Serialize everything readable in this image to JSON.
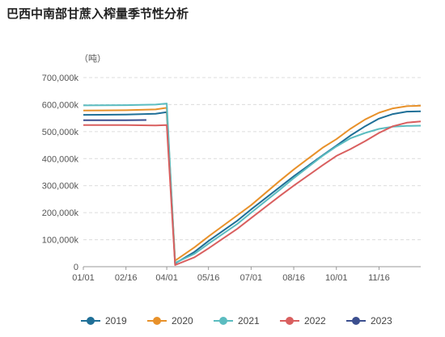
{
  "chart_data": {
    "type": "line",
    "title": "巴西中南部甘蔗入榨量季节性分析",
    "ylabel": "（吨）",
    "xlabel": "",
    "ylim": [
      0,
      700000
    ],
    "y_ticks": [
      "0",
      "100,000k",
      "200,000k",
      "300,000k",
      "400,000k",
      "500,000k",
      "600,000k",
      "700,000k"
    ],
    "x_ticks": [
      "01/01",
      "02/16",
      "04/01",
      "05/16",
      "07/01",
      "08/16",
      "10/01",
      "11/16"
    ],
    "grid": true,
    "legend_position": "bottom",
    "series": [
      {
        "name": "2019",
        "color": "#1f6f97",
        "points": [
          [
            "01/01",
            562000
          ],
          [
            "02/16",
            563000
          ],
          [
            "03/20",
            566000
          ],
          [
            "04/01",
            572000
          ],
          [
            "04/10",
            12000
          ],
          [
            "05/01",
            55000
          ],
          [
            "05/16",
            95000
          ],
          [
            "06/16",
            170000
          ],
          [
            "07/01",
            212000
          ],
          [
            "08/01",
            295000
          ],
          [
            "08/16",
            335000
          ],
          [
            "09/16",
            412000
          ],
          [
            "10/01",
            448000
          ],
          [
            "10/16",
            485000
          ],
          [
            "11/01",
            520000
          ],
          [
            "11/16",
            548000
          ],
          [
            "12/01",
            565000
          ],
          [
            "12/16",
            574000
          ],
          [
            "12/31",
            575000
          ]
        ]
      },
      {
        "name": "2020",
        "color": "#e8912a",
        "points": [
          [
            "01/01",
            578000
          ],
          [
            "02/16",
            579000
          ],
          [
            "03/20",
            582000
          ],
          [
            "04/01",
            588000
          ],
          [
            "04/10",
            22000
          ],
          [
            "05/01",
            72000
          ],
          [
            "05/16",
            112000
          ],
          [
            "06/16",
            190000
          ],
          [
            "07/01",
            228000
          ],
          [
            "08/01",
            318000
          ],
          [
            "08/16",
            360000
          ],
          [
            "09/16",
            440000
          ],
          [
            "10/01",
            472000
          ],
          [
            "10/16",
            510000
          ],
          [
            "11/01",
            545000
          ],
          [
            "11/16",
            570000
          ],
          [
            "12/01",
            586000
          ],
          [
            "12/16",
            594000
          ],
          [
            "12/31",
            596000
          ]
        ]
      },
      {
        "name": "2021",
        "color": "#5bbcc0",
        "points": [
          [
            "01/01",
            597000
          ],
          [
            "02/16",
            598000
          ],
          [
            "03/20",
            600000
          ],
          [
            "04/01",
            604000
          ],
          [
            "04/10",
            14000
          ],
          [
            "05/01",
            48000
          ],
          [
            "05/16",
            85000
          ],
          [
            "06/16",
            158000
          ],
          [
            "07/01",
            200000
          ],
          [
            "08/01",
            285000
          ],
          [
            "08/16",
            328000
          ],
          [
            "09/16",
            410000
          ],
          [
            "10/01",
            445000
          ],
          [
            "10/16",
            475000
          ],
          [
            "11/01",
            495000
          ],
          [
            "11/16",
            510000
          ],
          [
            "12/01",
            518000
          ],
          [
            "12/16",
            521000
          ],
          [
            "12/31",
            522000
          ]
        ]
      },
      {
        "name": "2022",
        "color": "#d95f5f",
        "points": [
          [
            "01/01",
            524000
          ],
          [
            "02/16",
            524000
          ],
          [
            "03/20",
            523000
          ],
          [
            "04/01",
            524000
          ],
          [
            "04/10",
            6000
          ],
          [
            "05/01",
            35000
          ],
          [
            "05/16",
            68000
          ],
          [
            "06/16",
            140000
          ],
          [
            "07/01",
            180000
          ],
          [
            "08/01",
            262000
          ],
          [
            "08/16",
            300000
          ],
          [
            "09/16",
            375000
          ],
          [
            "10/01",
            410000
          ],
          [
            "10/16",
            435000
          ],
          [
            "11/01",
            465000
          ],
          [
            "11/16",
            495000
          ],
          [
            "12/01",
            520000
          ],
          [
            "12/16",
            533000
          ],
          [
            "12/31",
            538000
          ]
        ]
      },
      {
        "name": "2023",
        "color": "#3c4f8f",
        "points": [
          [
            "01/01",
            542000
          ],
          [
            "02/16",
            542000
          ],
          [
            "03/10",
            543000
          ]
        ]
      }
    ]
  }
}
